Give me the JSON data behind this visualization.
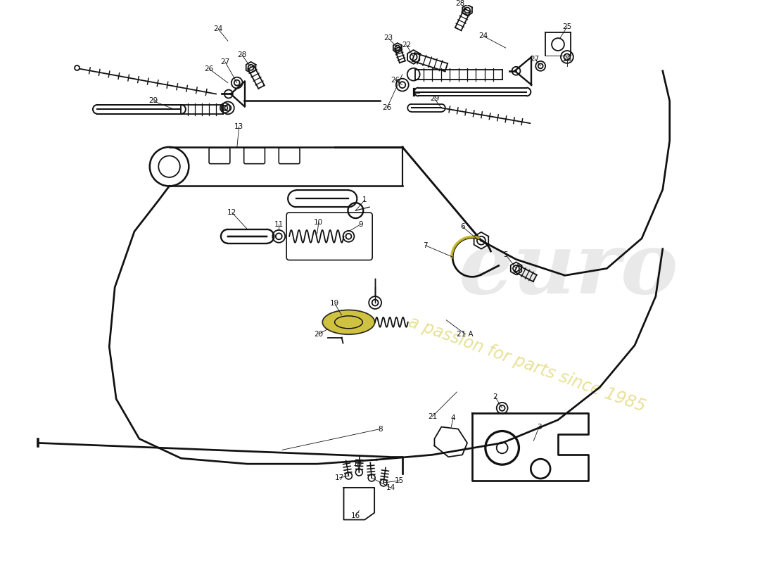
{
  "bg_color": "#ffffff",
  "line_color": "#111111",
  "accent_color": "#c8b820",
  "wm_gray": "#c0c0c0",
  "wm_yellow": "#d4c840",
  "lw": 1.3,
  "fs": 7.5,
  "figsize": [
    11.0,
    8.0
  ],
  "dpi": 100,
  "xlim": [
    0,
    11
  ],
  "ylim": [
    0,
    8
  ],
  "coord_scale_x": 11,
  "coord_scale_y": 8
}
